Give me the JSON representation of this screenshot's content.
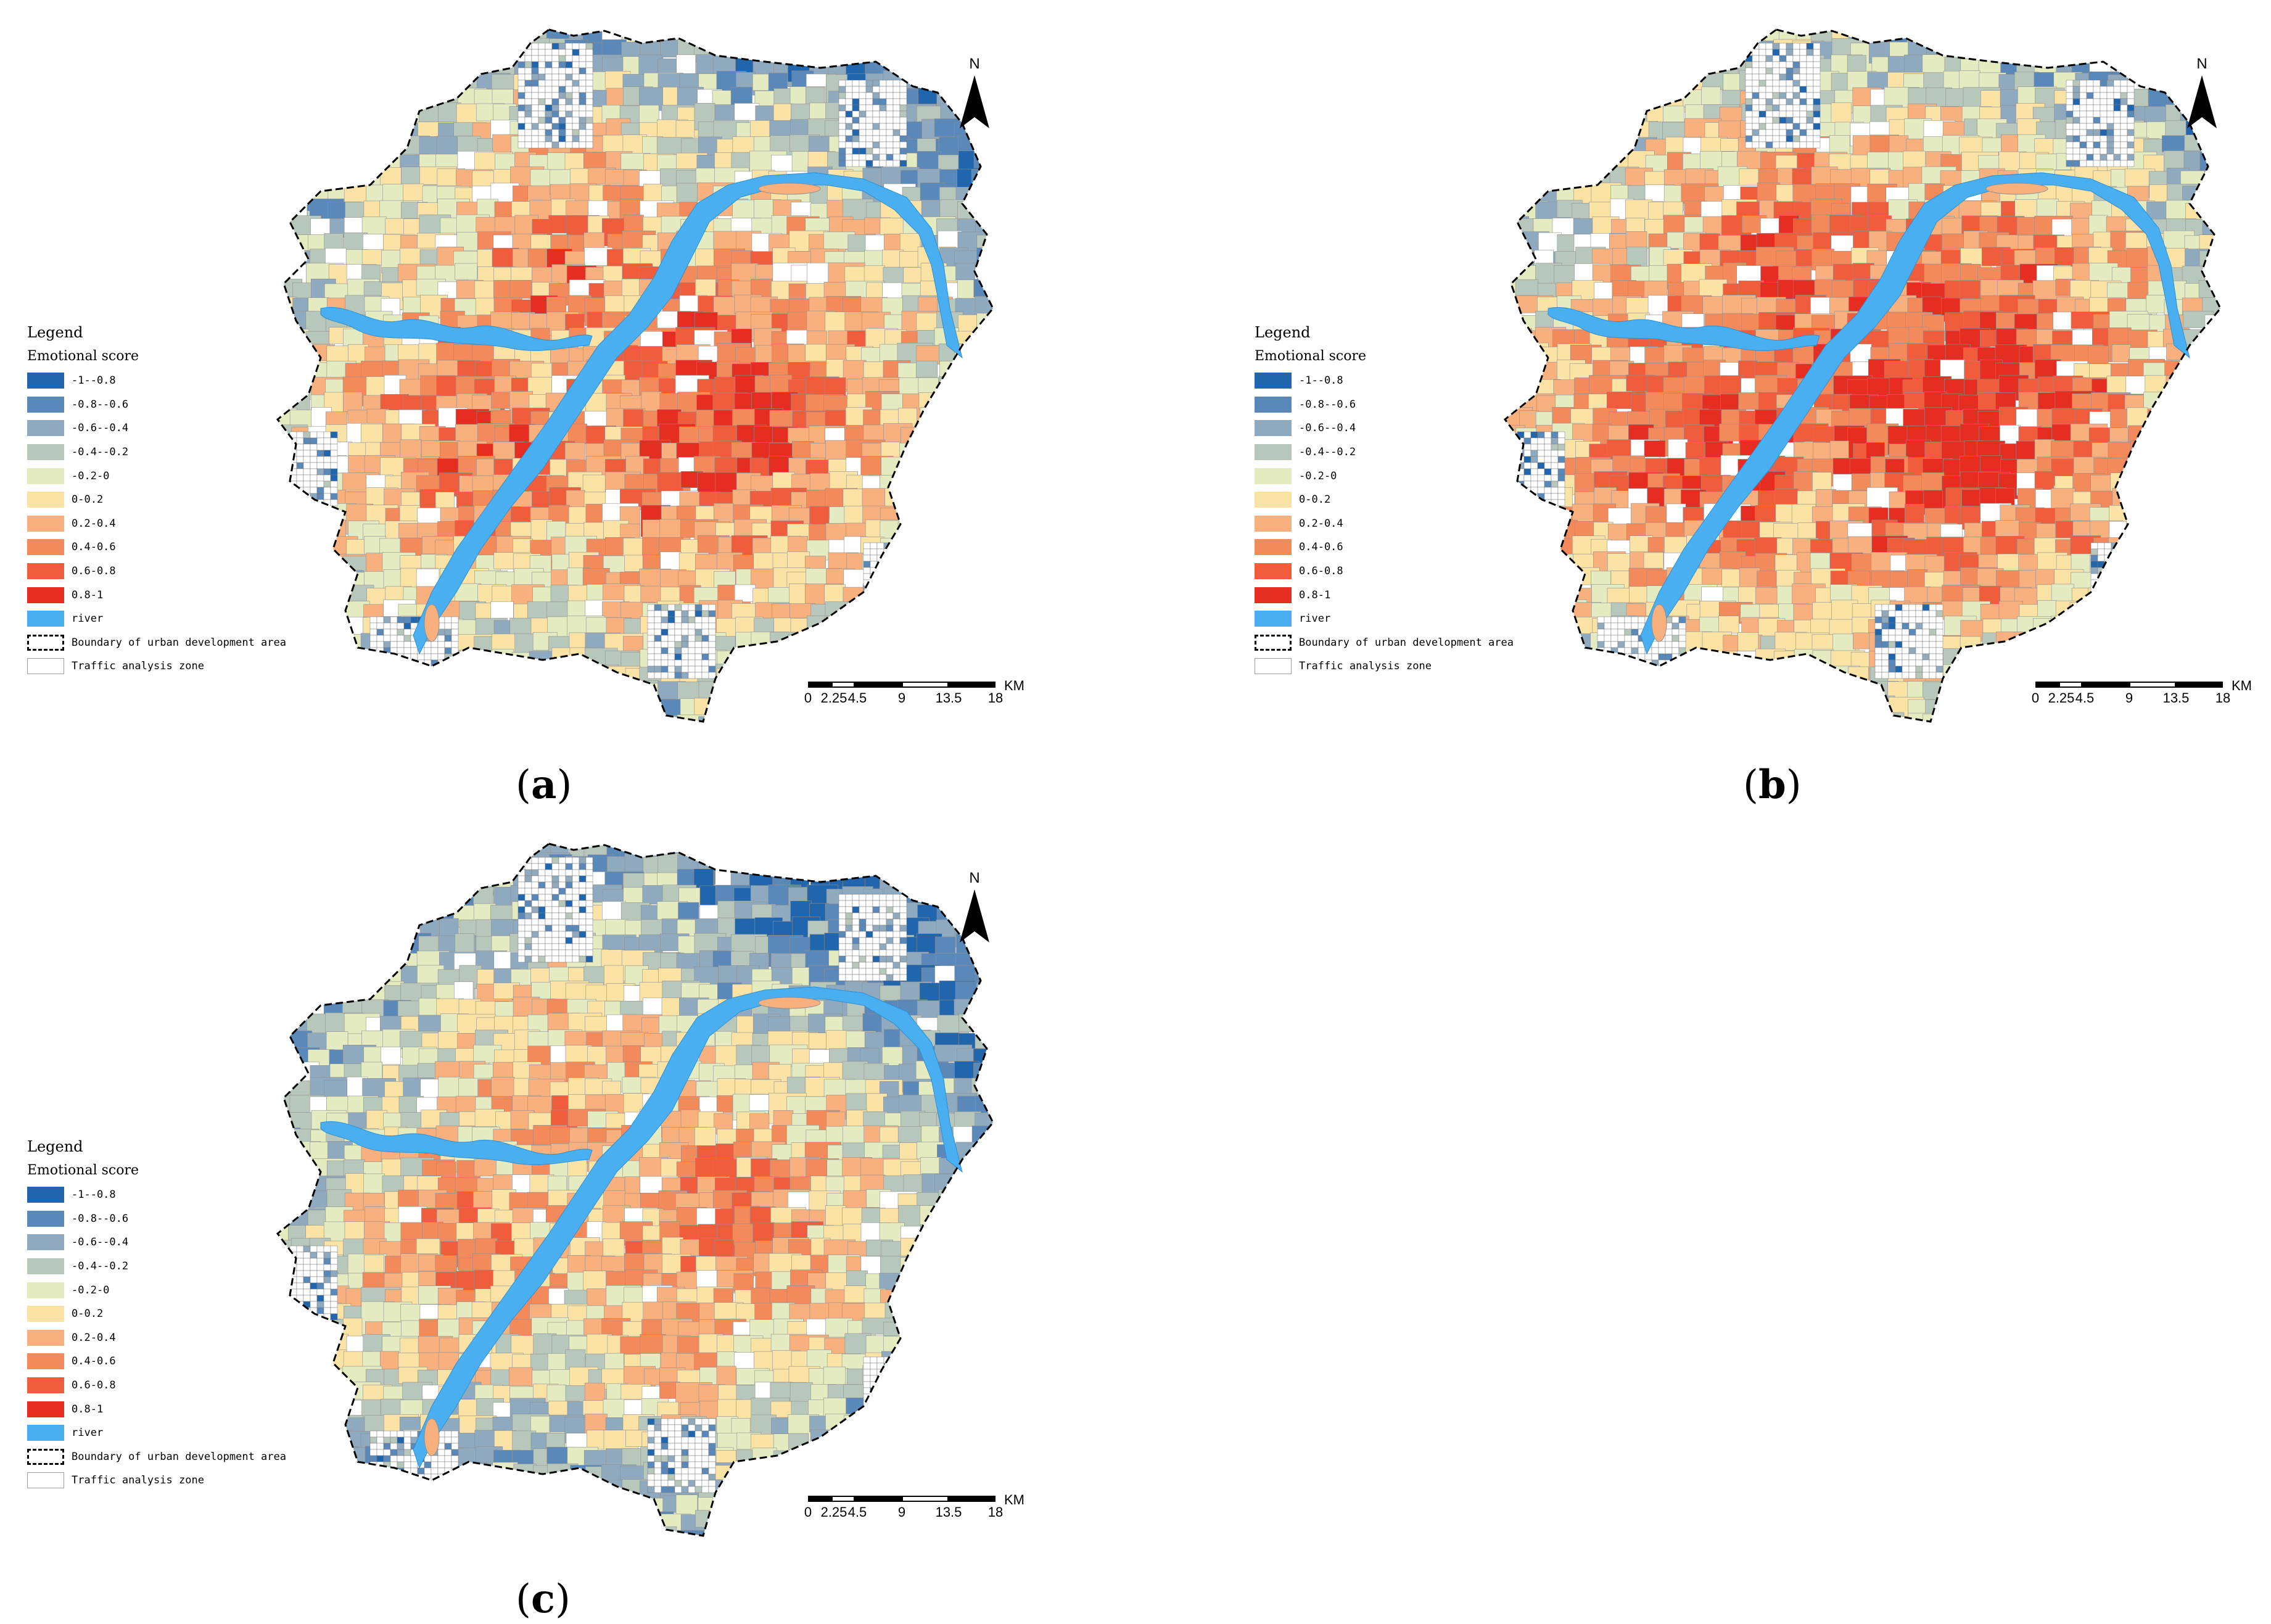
{
  "legend": {
    "title": "Legend",
    "subtitle": "Emotional score",
    "classes": [
      {
        "label": "-1--0.8",
        "color": "#2166ac"
      },
      {
        "label": "-0.8--0.6",
        "color": "#5a88b8"
      },
      {
        "label": "-0.6--0.4",
        "color": "#8fa9be"
      },
      {
        "label": "-0.4--0.2",
        "color": "#b8c7bb"
      },
      {
        "label": "-0.2-0",
        "color": "#e4ebc0"
      },
      {
        "label": "0-0.2",
        "color": "#fbe3a6"
      },
      {
        "label": "0.2-0.4",
        "color": "#f7b07e"
      },
      {
        "label": "0.4-0.6",
        "color": "#f38a5c"
      },
      {
        "label": "0.6-0.8",
        "color": "#ef5d3d"
      },
      {
        "label": "0.8-1",
        "color": "#e62d22"
      }
    ],
    "river_label": "river",
    "river_color": "#4aaff0",
    "boundary_label": "Boundary of urban development area",
    "taz_label": "Traffic analysis zone"
  },
  "north_label": "N",
  "scale": {
    "unit": "KM",
    "ticks": [
      "0",
      "2.25",
      "4.5",
      "9",
      "13.5",
      "18"
    ]
  },
  "panels": [
    {
      "caption_open": "(",
      "caption_letter": "a",
      "caption_close": ")",
      "hot_level": 0.75
    },
    {
      "caption_open": "(",
      "caption_letter": "b",
      "caption_close": ")",
      "hot_level": 0.9
    },
    {
      "caption_open": "(",
      "caption_letter": "c",
      "caption_close": ")",
      "hot_level": 0.55
    }
  ]
}
